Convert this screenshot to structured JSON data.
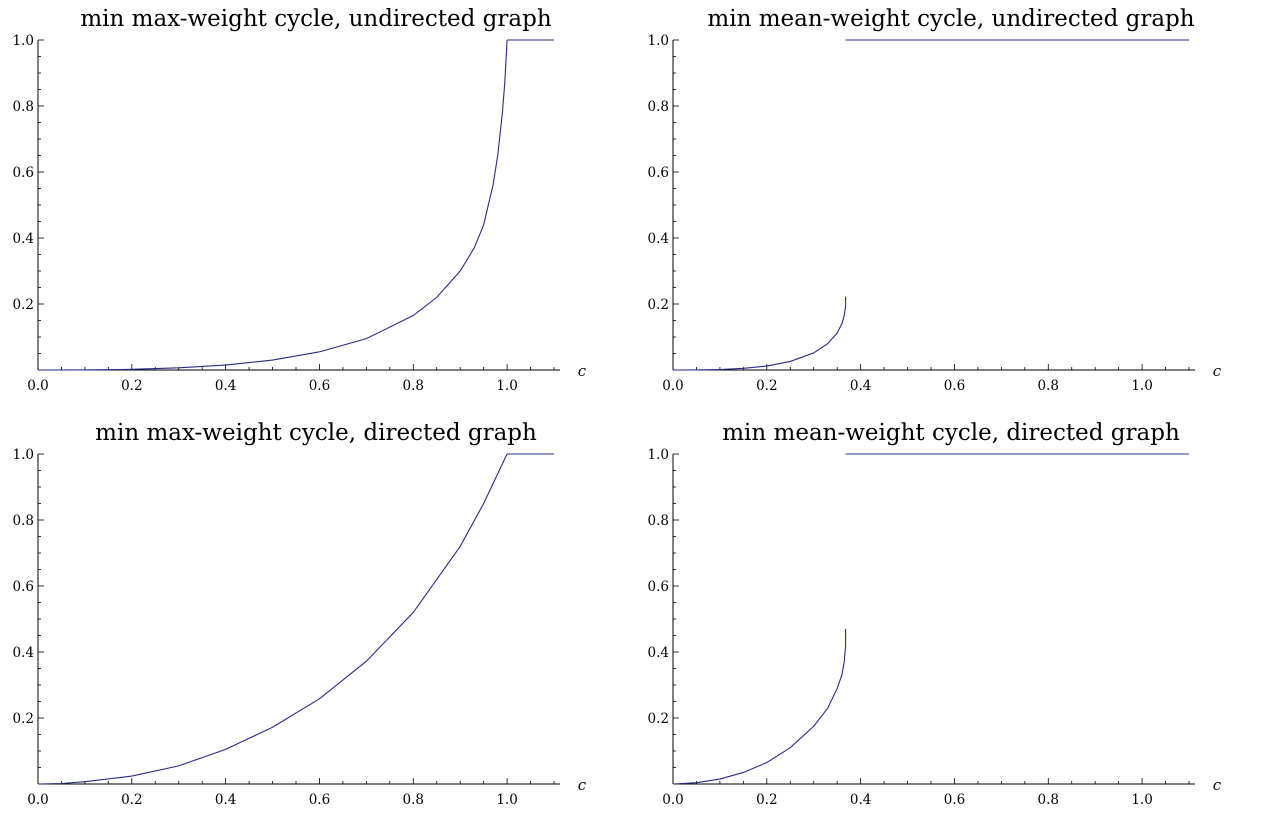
{
  "chart_data": [
    {
      "type": "line",
      "title": "min max-weight cycle, undirected graph",
      "xlabel": "c",
      "ylabel": "",
      "xlim": [
        0,
        1.1
      ],
      "ylim": [
        0,
        1.0
      ],
      "grid": false,
      "x_ticks": [
        "0.0",
        "0.2",
        "0.4",
        "0.6",
        "0.8",
        "1.0"
      ],
      "y_ticks": [
        "0.2",
        "0.4",
        "0.6",
        "0.8",
        "1.0"
      ],
      "line_color": "#2b2b8a",
      "series": [
        {
          "points": [
            [
              0,
              0
            ],
            [
              0.1,
              0.0003
            ],
            [
              0.2,
              0.002
            ],
            [
              0.3,
              0.0065
            ],
            [
              0.4,
              0.015
            ],
            [
              0.5,
              0.03
            ],
            [
              0.6,
              0.055
            ],
            [
              0.7,
              0.095
            ],
            [
              0.8,
              0.165
            ],
            [
              0.85,
              0.22
            ],
            [
              0.9,
              0.3
            ],
            [
              0.93,
              0.37
            ],
            [
              0.95,
              0.44
            ],
            [
              0.97,
              0.56
            ],
            [
              0.98,
              0.65
            ],
            [
              0.99,
              0.78
            ],
            [
              0.995,
              0.87
            ],
            [
              1.0,
              1.0
            ]
          ]
        },
        {
          "points": [
            [
              1.0,
              1.0
            ],
            [
              1.1,
              1.0
            ]
          ]
        }
      ]
    },
    {
      "type": "line",
      "title": "min mean-weight cycle, undirected graph",
      "xlabel": "c",
      "ylabel": "",
      "xlim": [
        0,
        1.1
      ],
      "ylim": [
        0,
        1.0
      ],
      "grid": false,
      "x_ticks": [
        "0.0",
        "0.2",
        "0.4",
        "0.6",
        "0.8",
        "1.0"
      ],
      "y_ticks": [
        "0.2",
        "0.4",
        "0.6",
        "0.8",
        "1.0"
      ],
      "line_color": "#2b2b8a",
      "series": [
        {
          "points": [
            [
              0,
              0
            ],
            [
              0.05,
              0.0002
            ],
            [
              0.1,
              0.0015
            ],
            [
              0.15,
              0.005
            ],
            [
              0.2,
              0.012
            ],
            [
              0.25,
              0.026
            ],
            [
              0.3,
              0.052
            ],
            [
              0.33,
              0.08
            ],
            [
              0.35,
              0.112
            ],
            [
              0.36,
              0.14
            ],
            [
              0.365,
              0.165
            ],
            [
              0.368,
              0.195
            ],
            [
              0.3679,
              0.222
            ]
          ]
        },
        {
          "points": [
            [
              0.3679,
              1.0
            ],
            [
              1.1,
              1.0
            ]
          ]
        }
      ]
    },
    {
      "type": "line",
      "title": "min max-weight cycle, directed graph",
      "xlabel": "c",
      "ylabel": "",
      "xlim": [
        0,
        1.1
      ],
      "ylim": [
        0,
        1.0
      ],
      "grid": false,
      "x_ticks": [
        "0.0",
        "0.2",
        "0.4",
        "0.6",
        "0.8",
        "1.0"
      ],
      "y_ticks": [
        "0.2",
        "0.4",
        "0.6",
        "0.8",
        "1.0"
      ],
      "line_color": "#2b2b8a",
      "series": [
        {
          "points": [
            [
              0,
              0
            ],
            [
              0.05,
              0.0015
            ],
            [
              0.1,
              0.007
            ],
            [
              0.2,
              0.024
            ],
            [
              0.3,
              0.055
            ],
            [
              0.4,
              0.105
            ],
            [
              0.5,
              0.172
            ],
            [
              0.6,
              0.258
            ],
            [
              0.7,
              0.372
            ],
            [
              0.8,
              0.52
            ],
            [
              0.9,
              0.72
            ],
            [
              0.95,
              0.85
            ],
            [
              1.0,
              1.0
            ]
          ]
        },
        {
          "points": [
            [
              1.0,
              1.0
            ],
            [
              1.1,
              1.0
            ]
          ]
        }
      ]
    },
    {
      "type": "line",
      "title": "min mean-weight cycle, directed graph",
      "xlabel": "c",
      "ylabel": "",
      "xlim": [
        0,
        1.1
      ],
      "ylim": [
        0,
        1.0
      ],
      "grid": false,
      "x_ticks": [
        "0.0",
        "0.2",
        "0.4",
        "0.6",
        "0.8",
        "1.0"
      ],
      "y_ticks": [
        "0.2",
        "0.4",
        "0.6",
        "0.8",
        "1.0"
      ],
      "line_color": "#2b2b8a",
      "series": [
        {
          "points": [
            [
              0,
              0
            ],
            [
              0.05,
              0.004
            ],
            [
              0.1,
              0.015
            ],
            [
              0.15,
              0.035
            ],
            [
              0.2,
              0.065
            ],
            [
              0.25,
              0.11
            ],
            [
              0.3,
              0.175
            ],
            [
              0.33,
              0.23
            ],
            [
              0.35,
              0.29
            ],
            [
              0.36,
              0.33
            ],
            [
              0.365,
              0.37
            ],
            [
              0.368,
              0.42
            ],
            [
              0.3679,
              0.47
            ]
          ]
        },
        {
          "points": [
            [
              0.3679,
              1.0
            ],
            [
              1.1,
              1.0
            ]
          ]
        }
      ]
    }
  ]
}
